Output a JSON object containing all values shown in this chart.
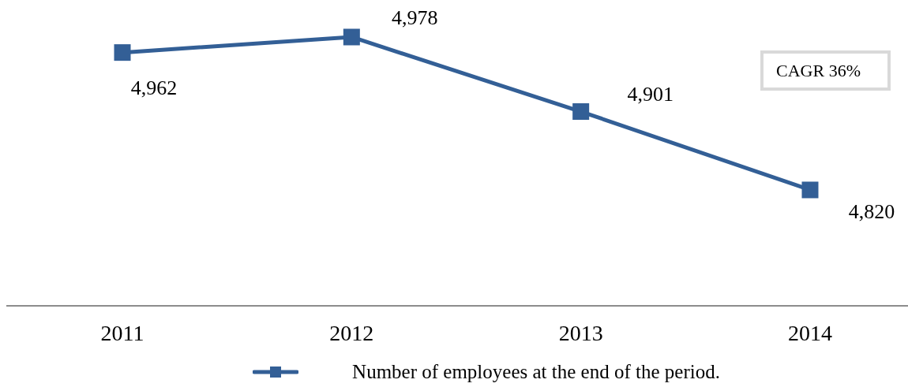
{
  "chart_data": {
    "type": "line",
    "categories": [
      "2011",
      "2012",
      "2013",
      "2014"
    ],
    "series": [
      {
        "name": "Number of employees at the end of the period.",
        "color": "#335f96",
        "values": [
          4962,
          4978,
          4901,
          4820
        ],
        "value_labels": [
          "4,962",
          "4,978",
          "4,901",
          "4,820"
        ]
      }
    ],
    "annotations": [
      "CAGR 36%"
    ],
    "marker": "square",
    "legend": "bottom",
    "tick_labels": "x"
  }
}
